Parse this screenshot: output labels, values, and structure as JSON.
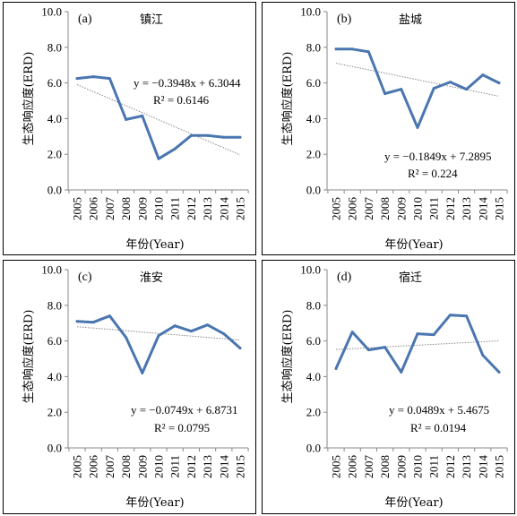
{
  "chart_data": [
    {
      "type": "line",
      "panel": "(a)",
      "title": "镇江",
      "xlabel": "年份(Year)",
      "ylabel": "生态响应度(ERD)",
      "categories": [
        "2005",
        "2006",
        "2007",
        "2008",
        "2009",
        "2010",
        "2011",
        "2012",
        "2013",
        "2014",
        "2015"
      ],
      "yticks": [
        "0.0",
        "2.0",
        "4.0",
        "6.0",
        "8.0",
        "10.0"
      ],
      "ylim": [
        0,
        10
      ],
      "series": [
        {
          "values": [
            6.25,
            6.35,
            6.25,
            3.95,
            4.15,
            1.75,
            2.3,
            3.05,
            3.05,
            2.95,
            2.95
          ]
        }
      ],
      "trend": {
        "slope": -0.3948,
        "intercept": 6.3044
      },
      "equation": "y = −0.3948x + 6.3044",
      "r2": "R² = 0.6146",
      "color": "#4a76b0"
    },
    {
      "type": "line",
      "panel": "(b)",
      "title": "盐城",
      "xlabel": "年份(Year)",
      "ylabel": "生态响应度(ERD)",
      "categories": [
        "2005",
        "2006",
        "2007",
        "2008",
        "2009",
        "2010",
        "2011",
        "2012",
        "2013",
        "2014",
        "2015"
      ],
      "yticks": [
        "0.0",
        "2.0",
        "4.0",
        "6.0",
        "8.0",
        "10.0"
      ],
      "ylim": [
        0,
        10
      ],
      "series": [
        {
          "values": [
            7.9,
            7.9,
            7.75,
            5.4,
            5.65,
            3.5,
            5.7,
            6.05,
            5.65,
            6.45,
            6.0
          ]
        }
      ],
      "trend": {
        "slope": -0.1849,
        "intercept": 7.2895
      },
      "equation": "y = −0.1849x + 7.2895",
      "r2": "R² = 0.224",
      "color": "#4a76b0"
    },
    {
      "type": "line",
      "panel": "(c)",
      "title": "淮安",
      "xlabel": "年份(Year)",
      "ylabel": "生态响应度(ERD)",
      "categories": [
        "2005",
        "2006",
        "2007",
        "2008",
        "2009",
        "2010",
        "2011",
        "2012",
        "2013",
        "2014",
        "2015"
      ],
      "yticks": [
        "0.0",
        "2.0",
        "4.0",
        "6.0",
        "8.0",
        "10.0"
      ],
      "ylim": [
        0,
        10
      ],
      "series": [
        {
          "values": [
            7.1,
            7.05,
            7.4,
            6.2,
            4.2,
            6.3,
            6.85,
            6.55,
            6.9,
            6.4,
            5.6
          ]
        }
      ],
      "trend": {
        "slope": -0.0749,
        "intercept": 6.8731
      },
      "equation": "y = −0.0749x + 6.8731",
      "r2": "R² = 0.0795",
      "color": "#4a76b0"
    },
    {
      "type": "line",
      "panel": "(d)",
      "title": "宿迁",
      "xlabel": "年份(Year)",
      "ylabel": "生态响应度(ERD)",
      "categories": [
        "2005",
        "2006",
        "2007",
        "2008",
        "2009",
        "2010",
        "2011",
        "2012",
        "2013",
        "2014",
        "2015"
      ],
      "yticks": [
        "0.0",
        "2.0",
        "4.0",
        "6.0",
        "8.0",
        "10.0"
      ],
      "ylim": [
        0,
        10
      ],
      "series": [
        {
          "values": [
            4.45,
            6.5,
            5.5,
            5.65,
            4.25,
            6.4,
            6.35,
            7.45,
            7.4,
            5.2,
            4.25
          ]
        }
      ],
      "trend": {
        "slope": 0.0489,
        "intercept": 5.4675
      },
      "equation": "y = 0.0489x + 5.4675",
      "r2": "R² = 0.0194",
      "color": "#4a76b0"
    }
  ]
}
